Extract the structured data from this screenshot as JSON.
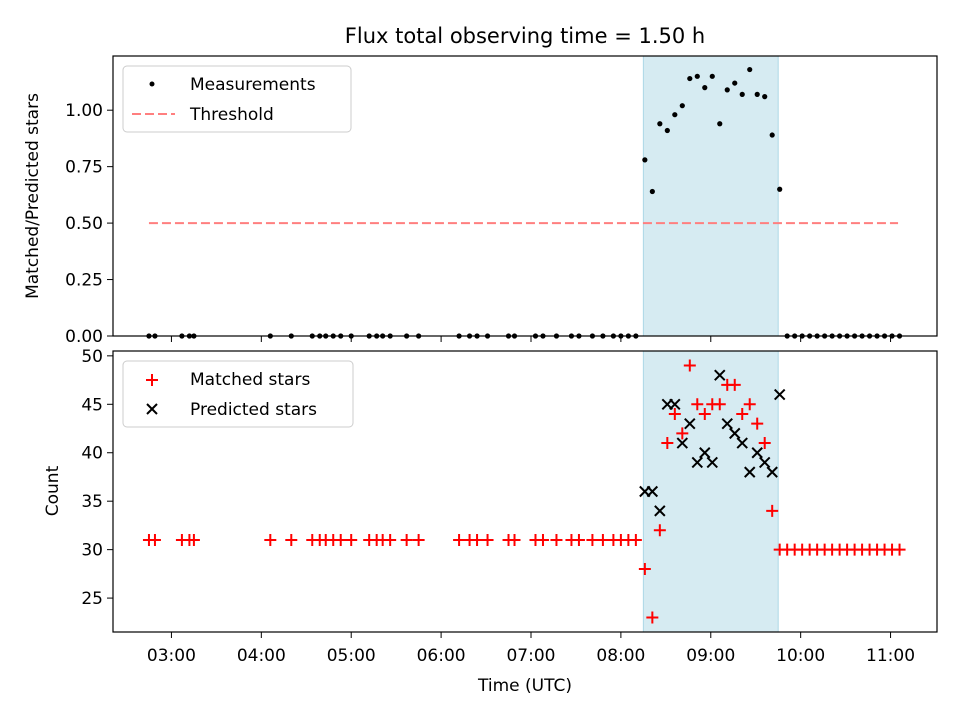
{
  "figure": {
    "title": "Flux total observing time = 1.50 h",
    "xlabel": "Time (UTC)",
    "x_ticks": [
      "03:00",
      "04:00",
      "05:00",
      "06:00",
      "07:00",
      "08:00",
      "09:00",
      "10:00",
      "11:00"
    ],
    "xlim": [
      "02:21",
      "11:31"
    ],
    "shaded_interval": [
      "08:15",
      "09:45"
    ],
    "shade_color": "#add8e6"
  },
  "chart_data": [
    {
      "type": "scatter",
      "ylabel": "Matched/Predicted stars",
      "ylim": [
        0,
        1.24
      ],
      "y_ticks": [
        "0.00",
        "0.25",
        "0.50",
        "0.75",
        "1.00"
      ],
      "legend_position": "top-left",
      "threshold": {
        "name": "Threshold",
        "value": 0.5,
        "x_range": [
          "02:45",
          "11:05"
        ],
        "color": "#ff7f7f"
      },
      "series": [
        {
          "name": "Measurements",
          "color": "#000000",
          "points": [
            [
              "02:45",
              0
            ],
            [
              "02:49",
              0
            ],
            [
              "03:07",
              0
            ],
            [
              "03:12",
              0
            ],
            [
              "03:15",
              0
            ],
            [
              "04:06",
              0
            ],
            [
              "04:20",
              0
            ],
            [
              "04:34",
              0
            ],
            [
              "04:39",
              0
            ],
            [
              "04:43",
              0
            ],
            [
              "04:48",
              0
            ],
            [
              "04:53",
              0
            ],
            [
              "05:00",
              0
            ],
            [
              "05:12",
              0
            ],
            [
              "05:17",
              0
            ],
            [
              "05:21",
              0
            ],
            [
              "05:26",
              0
            ],
            [
              "05:37",
              0
            ],
            [
              "05:45",
              0
            ],
            [
              "06:12",
              0
            ],
            [
              "06:19",
              0
            ],
            [
              "06:24",
              0
            ],
            [
              "06:31",
              0
            ],
            [
              "06:45",
              0
            ],
            [
              "06:49",
              0
            ],
            [
              "07:03",
              0
            ],
            [
              "07:08",
              0
            ],
            [
              "07:17",
              0
            ],
            [
              "07:27",
              0
            ],
            [
              "07:32",
              0
            ],
            [
              "07:41",
              0
            ],
            [
              "07:48",
              0
            ],
            [
              "07:55",
              0
            ],
            [
              "08:00",
              0
            ],
            [
              "08:05",
              0
            ],
            [
              "08:10",
              0
            ],
            [
              "08:16",
              0.78
            ],
            [
              "08:21",
              0.64
            ],
            [
              "08:26",
              0.94
            ],
            [
              "08:31",
              0.91
            ],
            [
              "08:36",
              0.98
            ],
            [
              "08:41",
              1.02
            ],
            [
              "08:46",
              1.14
            ],
            [
              "08:51",
              1.15
            ],
            [
              "08:56",
              1.1
            ],
            [
              "09:01",
              1.15
            ],
            [
              "09:06",
              0.94
            ],
            [
              "09:11",
              1.09
            ],
            [
              "09:16",
              1.12
            ],
            [
              "09:21",
              1.07
            ],
            [
              "09:26",
              1.18
            ],
            [
              "09:31",
              1.07
            ],
            [
              "09:36",
              1.06
            ],
            [
              "09:41",
              0.89
            ],
            [
              "09:46",
              0.65
            ],
            [
              "09:51",
              0
            ],
            [
              "09:56",
              0
            ],
            [
              "10:01",
              0
            ],
            [
              "10:06",
              0
            ],
            [
              "10:11",
              0
            ],
            [
              "10:16",
              0
            ],
            [
              "10:21",
              0
            ],
            [
              "10:26",
              0
            ],
            [
              "10:31",
              0
            ],
            [
              "10:36",
              0
            ],
            [
              "10:41",
              0
            ],
            [
              "10:46",
              0
            ],
            [
              "10:51",
              0
            ],
            [
              "10:56",
              0
            ],
            [
              "11:01",
              0
            ],
            [
              "11:06",
              0
            ]
          ]
        }
      ]
    },
    {
      "type": "scatter",
      "ylabel": "Count",
      "ylim": [
        21.5,
        50.5
      ],
      "y_ticks": [
        "25",
        "30",
        "35",
        "40",
        "45",
        "50"
      ],
      "legend_position": "top-left",
      "series": [
        {
          "name": "Matched stars",
          "marker": "+",
          "color": "#ff0000",
          "points": [
            [
              "02:45",
              31
            ],
            [
              "02:49",
              31
            ],
            [
              "03:07",
              31
            ],
            [
              "03:12",
              31
            ],
            [
              "03:15",
              31
            ],
            [
              "04:06",
              31
            ],
            [
              "04:20",
              31
            ],
            [
              "04:34",
              31
            ],
            [
              "04:39",
              31
            ],
            [
              "04:43",
              31
            ],
            [
              "04:48",
              31
            ],
            [
              "04:53",
              31
            ],
            [
              "05:00",
              31
            ],
            [
              "05:12",
              31
            ],
            [
              "05:17",
              31
            ],
            [
              "05:21",
              31
            ],
            [
              "05:26",
              31
            ],
            [
              "05:37",
              31
            ],
            [
              "05:45",
              31
            ],
            [
              "06:12",
              31
            ],
            [
              "06:19",
              31
            ],
            [
              "06:24",
              31
            ],
            [
              "06:31",
              31
            ],
            [
              "06:45",
              31
            ],
            [
              "06:49",
              31
            ],
            [
              "07:03",
              31
            ],
            [
              "07:08",
              31
            ],
            [
              "07:17",
              31
            ],
            [
              "07:27",
              31
            ],
            [
              "07:32",
              31
            ],
            [
              "07:41",
              31
            ],
            [
              "07:48",
              31
            ],
            [
              "07:55",
              31
            ],
            [
              "08:00",
              31
            ],
            [
              "08:05",
              31
            ],
            [
              "08:10",
              31
            ],
            [
              "08:16",
              28
            ],
            [
              "08:21",
              23
            ],
            [
              "08:26",
              32
            ],
            [
              "08:31",
              41
            ],
            [
              "08:36",
              44
            ],
            [
              "08:41",
              42
            ],
            [
              "08:46",
              49
            ],
            [
              "08:51",
              45
            ],
            [
              "08:56",
              44
            ],
            [
              "09:01",
              45
            ],
            [
              "09:06",
              45
            ],
            [
              "09:11",
              47
            ],
            [
              "09:16",
              47
            ],
            [
              "09:21",
              44
            ],
            [
              "09:26",
              45
            ],
            [
              "09:31",
              43
            ],
            [
              "09:36",
              41
            ],
            [
              "09:41",
              34
            ],
            [
              "09:46",
              30
            ],
            [
              "09:51",
              30
            ],
            [
              "09:56",
              30
            ],
            [
              "10:01",
              30
            ],
            [
              "10:06",
              30
            ],
            [
              "10:11",
              30
            ],
            [
              "10:16",
              30
            ],
            [
              "10:21",
              30
            ],
            [
              "10:26",
              30
            ],
            [
              "10:31",
              30
            ],
            [
              "10:36",
              30
            ],
            [
              "10:41",
              30
            ],
            [
              "10:46",
              30
            ],
            [
              "10:51",
              30
            ],
            [
              "10:56",
              30
            ],
            [
              "11:01",
              30
            ],
            [
              "11:06",
              30
            ]
          ]
        },
        {
          "name": "Predicted stars",
          "marker": "x",
          "color": "#000000",
          "points": [
            [
              "08:16",
              36
            ],
            [
              "08:21",
              36
            ],
            [
              "08:26",
              34
            ],
            [
              "08:31",
              45
            ],
            [
              "08:36",
              45
            ],
            [
              "08:41",
              41
            ],
            [
              "08:46",
              43
            ],
            [
              "08:51",
              39
            ],
            [
              "08:56",
              40
            ],
            [
              "09:01",
              39
            ],
            [
              "09:06",
              48
            ],
            [
              "09:11",
              43
            ],
            [
              "09:16",
              42
            ],
            [
              "09:21",
              41
            ],
            [
              "09:26",
              38
            ],
            [
              "09:31",
              40
            ],
            [
              "09:36",
              39
            ],
            [
              "09:41",
              38
            ],
            [
              "09:46",
              46
            ]
          ]
        }
      ]
    }
  ]
}
